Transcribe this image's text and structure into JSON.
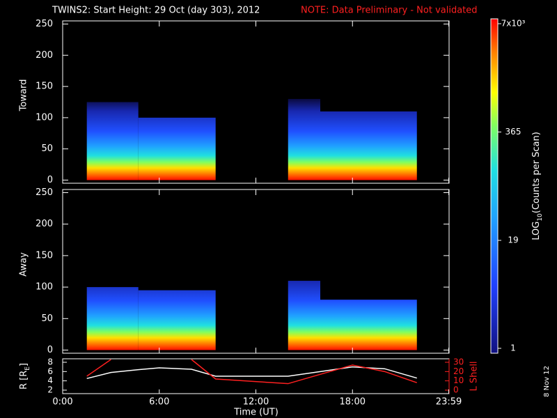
{
  "chart_data": {
    "type": "spectrogram",
    "title": "TWINS2: Start Height: 29 Oct (day 303), 2012",
    "note": "NOTE: Data Preliminary - Not validated",
    "xlim": [
      0,
      24
    ],
    "xticks": [
      {
        "value": 0,
        "label": "0:00"
      },
      {
        "value": 6,
        "label": "6:00"
      },
      {
        "value": 12,
        "label": "12:00"
      },
      {
        "value": 18,
        "label": "18:00"
      },
      {
        "value": 23.98,
        "label": "23:59"
      }
    ],
    "xlabel": "Time (UT)",
    "panels": [
      {
        "label": "Toward",
        "ylim": [
          -5,
          255
        ],
        "yticks": [
          0,
          50,
          100,
          150,
          200,
          250
        ],
        "segments": [
          {
            "start": 1.5,
            "end": 4.7,
            "top": 125
          },
          {
            "start": 4.7,
            "end": 9.5,
            "top": 100
          },
          {
            "start": 14,
            "end": 16,
            "top": 130
          },
          {
            "start": 16,
            "end": 22,
            "top": 110
          }
        ]
      },
      {
        "label": "Away",
        "ylim": [
          -5,
          255
        ],
        "yticks": [
          0,
          50,
          100,
          150,
          200,
          250
        ],
        "segments": [
          {
            "start": 1.5,
            "end": 4.7,
            "top": 100
          },
          {
            "start": 4.7,
            "end": 9.5,
            "top": 95
          },
          {
            "start": 14,
            "end": 16,
            "top": 110
          },
          {
            "start": 16,
            "end": 22,
            "top": 80
          }
        ]
      }
    ],
    "colorbar": {
      "label_main": "LOG",
      "label_sub": "10",
      "label_rest": "(Counts per Scan)",
      "log_scale": true,
      "lim": [
        1,
        7000
      ],
      "ticks": [
        1,
        19,
        365,
        {
          "value": 7000,
          "label": "7x10³"
        }
      ]
    },
    "ephemeris": {
      "r_label": "R [R",
      "r_label_sub": "E",
      "r_label_end": "]",
      "l_label": "L Shell",
      "ylim": [
        1.25,
        8.75
      ],
      "yticks": [
        2,
        4,
        6,
        8
      ],
      "y2lim": [
        -3.75,
        33.75
      ],
      "y2ticks": [
        0,
        10,
        20,
        30
      ],
      "x": [
        1.5,
        3,
        4.7,
        6,
        8,
        9.5,
        14,
        16,
        18,
        20,
        22
      ],
      "series": [
        {
          "name": "R",
          "color": "#ffffff",
          "values": [
            4.5,
            5.8,
            6.4,
            6.8,
            6.5,
            5,
            5,
            6,
            7,
            6.6,
            4.6
          ]
        },
        {
          "name": "L Shell",
          "color": "#ff2020",
          "axis": "y2",
          "values": [
            15,
            33,
            null,
            null,
            33,
            12,
            7,
            17,
            27,
            20,
            8
          ]
        }
      ]
    },
    "date_stamp": "8 Nov 12"
  }
}
